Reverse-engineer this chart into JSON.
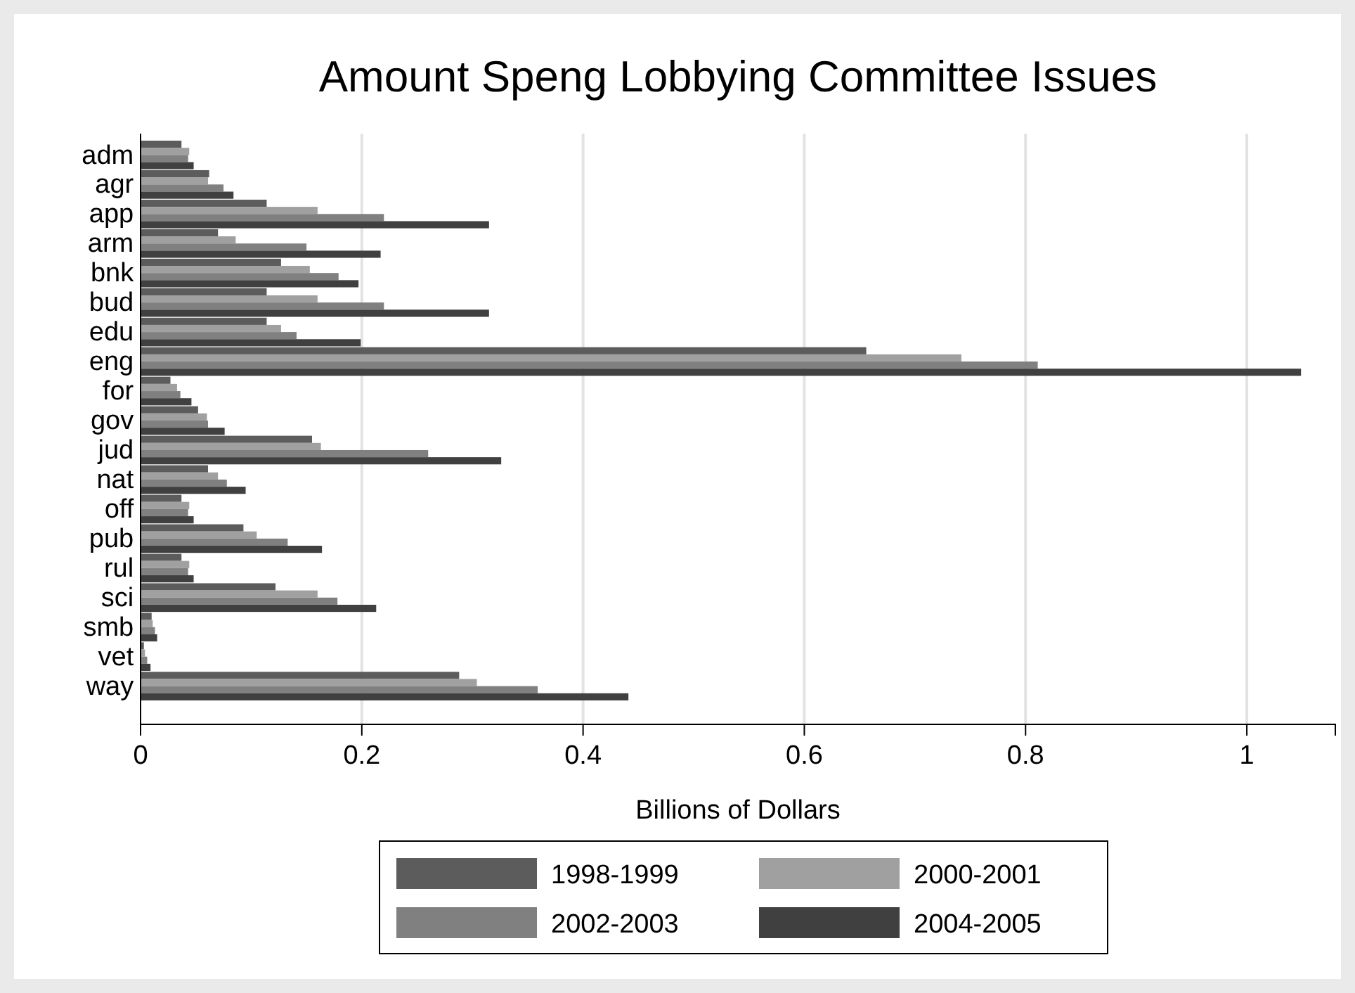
{
  "chart_data": {
    "type": "bar",
    "orientation": "horizontal",
    "title": "Amount Speng Lobbying Committee Issues",
    "xlabel": "Billions of Dollars",
    "categories": [
      "adm",
      "agr",
      "app",
      "arm",
      "bnk",
      "bud",
      "edu",
      "eng",
      "for",
      "gov",
      "jud",
      "nat",
      "off",
      "pub",
      "rul",
      "sci",
      "smb",
      "vet",
      "way"
    ],
    "series": [
      {
        "name": "1998-1999",
        "color": "#5c5c5c",
        "values": [
          0.037,
          0.062,
          0.114,
          0.07,
          0.127,
          0.114,
          0.114,
          0.656,
          0.027,
          0.052,
          0.155,
          0.061,
          0.037,
          0.093,
          0.037,
          0.122,
          0.01,
          0.003,
          0.288
        ]
      },
      {
        "name": "2000-2001",
        "color": "#a0a0a0",
        "values": [
          0.044,
          0.061,
          0.16,
          0.086,
          0.153,
          0.16,
          0.127,
          0.742,
          0.033,
          0.06,
          0.163,
          0.07,
          0.044,
          0.105,
          0.044,
          0.16,
          0.011,
          0.004,
          0.304
        ]
      },
      {
        "name": "2002-2003",
        "color": "#808080",
        "values": [
          0.043,
          0.075,
          0.22,
          0.15,
          0.179,
          0.22,
          0.141,
          0.811,
          0.036,
          0.061,
          0.26,
          0.078,
          0.043,
          0.133,
          0.043,
          0.178,
          0.013,
          0.006,
          0.359
        ]
      },
      {
        "name": "2004-2005",
        "color": "#404040",
        "values": [
          0.048,
          0.084,
          0.315,
          0.217,
          0.197,
          0.315,
          0.199,
          1.049,
          0.046,
          0.076,
          0.326,
          0.095,
          0.048,
          0.164,
          0.048,
          0.213,
          0.015,
          0.009,
          0.441
        ]
      }
    ],
    "xlim": [
      0,
      1.08
    ],
    "xticks": [
      0,
      0.2,
      0.4,
      0.6,
      0.8,
      1
    ],
    "grid": "x",
    "legend": "bottom"
  }
}
